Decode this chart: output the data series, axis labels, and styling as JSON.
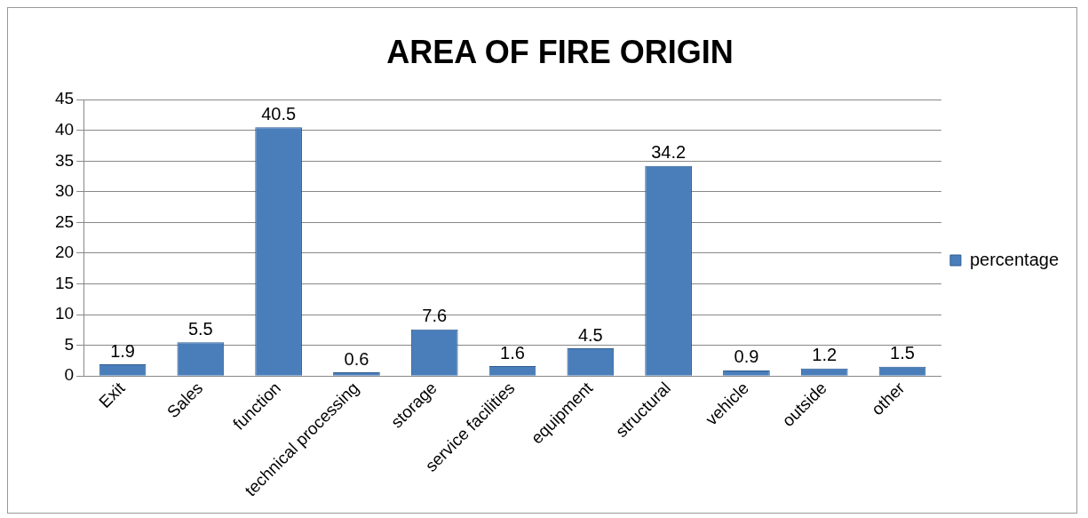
{
  "chart_data": {
    "type": "bar",
    "title": "AREA OF FIRE ORIGIN",
    "categories": [
      "Exit",
      "Sales",
      "function",
      "technical processing",
      "storage",
      "service facilities",
      "equipment",
      "structural",
      "vehicle",
      "outside",
      "other"
    ],
    "series": [
      {
        "name": "percentage",
        "color": "#4a7ebb",
        "values": [
          1.9,
          5.5,
          40.5,
          0.6,
          7.6,
          1.6,
          4.5,
          34.2,
          0.9,
          1.2,
          1.5
        ]
      }
    ],
    "ylim": [
      0,
      45
    ],
    "yticks": [
      0,
      5,
      10,
      15,
      20,
      25,
      30,
      35,
      40,
      45
    ],
    "grid": "y",
    "legend": "right",
    "data_labels": true
  }
}
